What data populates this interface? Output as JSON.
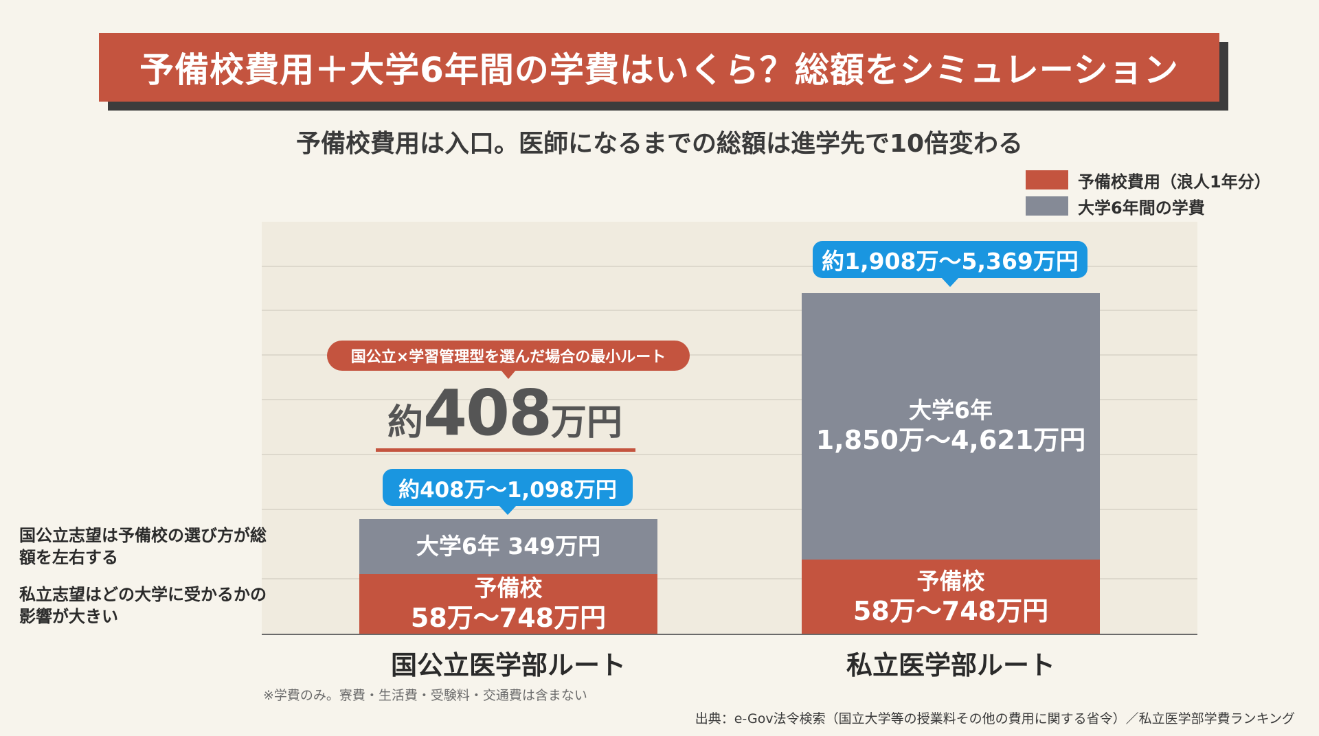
{
  "title": "予備校費用＋大学6年間の学費はいくら？総額をシミュレーション",
  "subtitle": "予備校費用は入口。医師になるまでの総額は進学先で10倍変わる",
  "legend": [
    {
      "label": "予備校費用（浪人1年分）",
      "color": "#c4543f"
    },
    {
      "label": "大学6年間の学費",
      "color": "#858a96"
    }
  ],
  "chart_data": {
    "type": "bar",
    "stacked": true,
    "categories": [
      "国公立医学部ルート",
      "私立医学部ルート"
    ],
    "series": [
      {
        "name": "予備校費用（浪人1年分）",
        "color": "#c4543f",
        "values": [
          58,
          58
        ]
      },
      {
        "name": "大学6年間の学費",
        "color": "#858a96",
        "values": [
          349,
          1850
        ]
      }
    ],
    "ylim": [
      0,
      2000
    ],
    "grid": true,
    "legend_position": "top-right",
    "bars": [
      {
        "category": "国公立医学部ルート",
        "prep_label": "予備校",
        "prep_range": "58万〜748万円",
        "univ_label": "大学6年 349万円",
        "total_callout": "約408万〜1,098万円"
      },
      {
        "category": "私立医学部ルート",
        "prep_label": "予備校",
        "prep_range": "58万〜748万円",
        "univ_label": "大学6年",
        "univ_range": "1,850万〜4,621万円",
        "total_callout": "約1,908万〜5,369万円"
      }
    ]
  },
  "annotation": {
    "badge": "国公立×学習管理型を選んだ場合の最小ルート",
    "value_prefix": "約",
    "value_number": "408",
    "value_unit": "万円"
  },
  "side_notes": [
    "国公立志望は予備校の選び方が総額を左右する",
    "私立志望はどの大学に受かるかの影響が大きい"
  ],
  "footnote": "※学費のみ。寮費・生活費・受験料・交通費は含まない",
  "source": "出典：e-Gov法令検索（国立大学等の授業料その他の費用に関する省令）／私立医学部学費ランキング"
}
